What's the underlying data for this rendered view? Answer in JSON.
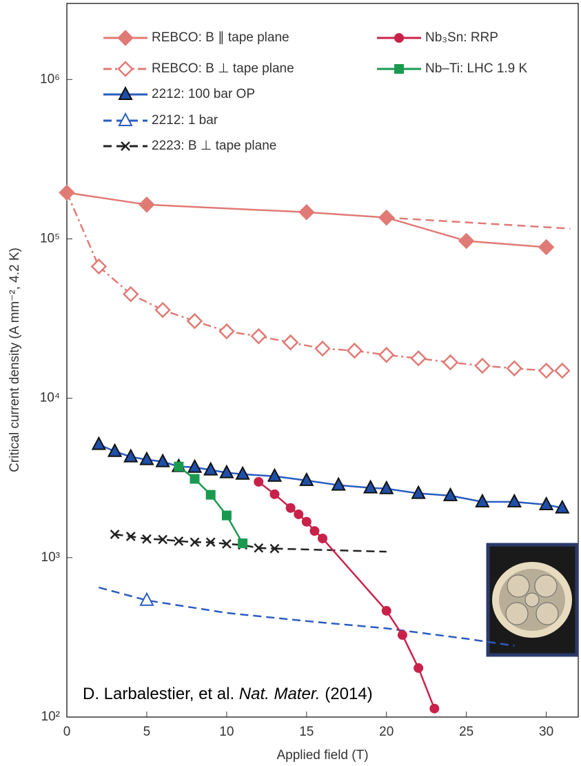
{
  "chart_data": {
    "type": "line",
    "y_label": "Critical current density (A mm⁻², 4.2 K)",
    "x_label": "Applied field (T)",
    "citation": [
      "D. Larbalestier, et al. ",
      "Nat. Mater.",
      " (2014)"
    ],
    "log_y": true,
    "xlim": [
      0,
      32
    ],
    "xticks": [
      0,
      5,
      10,
      15,
      20,
      25,
      30
    ],
    "ylim": [
      100,
      3000000
    ],
    "yticks": [
      {
        "value": 100,
        "label": "10²"
      },
      {
        "value": 1000,
        "label": "10³"
      },
      {
        "value": 10000,
        "label": "10⁴"
      },
      {
        "value": 100000,
        "label": "10⁵"
      },
      {
        "value": 1000000,
        "label": "10⁶"
      }
    ],
    "series": [
      {
        "color": "#e07a75",
        "dash": "dash",
        "marker": "none",
        "x": [
          20,
          31.5
        ],
        "values": [
          136000,
          116000
        ]
      },
      {
        "color": "#e07a75",
        "dash": "dashdot",
        "marker": "none",
        "x": [
          0,
          2
        ],
        "values": [
          195000,
          67100
        ]
      },
      {
        "name": "REBCO: B ∥ tape plane",
        "color": "#e07a75",
        "dash": "solid",
        "marker": "diamond",
        "x": [
          0,
          5,
          15,
          20,
          25,
          30
        ],
        "values": [
          195000,
          164000,
          147000,
          136000,
          97000,
          88700
        ]
      },
      {
        "name": "REBCO: B ⊥ tape plane",
        "color": "#e07a75",
        "dash": "dashdot",
        "marker": "diamond-open",
        "x": [
          2,
          4,
          6,
          8,
          10,
          12,
          14,
          16,
          18,
          20,
          22,
          24,
          26,
          28,
          30,
          31
        ],
        "values": [
          67100,
          45000,
          35800,
          30500,
          26300,
          24500,
          22400,
          20500,
          19900,
          18700,
          17800,
          16800,
          16000,
          15400,
          14900,
          14900
        ]
      },
      {
        "name": "2212: 100 bar OP",
        "color": "#2a5cc0",
        "dash": "solid",
        "marker": "triangle",
        "x": [
          2,
          3,
          4,
          5,
          6,
          7,
          8,
          9,
          10,
          11,
          13,
          15,
          17,
          19,
          20,
          22,
          24,
          26,
          28,
          30,
          31
        ],
        "values": [
          5130,
          4640,
          4290,
          4120,
          4000,
          3730,
          3690,
          3550,
          3410,
          3340,
          3240,
          3050,
          2850,
          2740,
          2710,
          2530,
          2450,
          2240,
          2240,
          2150,
          2050
        ]
      },
      {
        "color": "#2a5cc0",
        "dash": "dash",
        "marker": "none",
        "x": [
          2,
          5,
          10,
          15,
          20,
          25,
          28
        ],
        "values": [
          650,
          540,
          450,
          400,
          360,
          310,
          280
        ]
      },
      {
        "name": "2212: 1 bar",
        "color": "#2a5cc0",
        "dash": "dash",
        "marker": "triangle-open",
        "x": [
          5
        ],
        "values": [
          540
        ]
      },
      {
        "color": "#222222",
        "dash": "dash",
        "marker": "none",
        "x": [
          13,
          20
        ],
        "values": [
          1140,
          1090
        ]
      },
      {
        "name": "2223: B ⊥ tape plane",
        "color": "#222222",
        "dash": "dash",
        "marker": "x",
        "x": [
          3,
          4,
          5,
          6,
          7,
          8,
          9,
          10,
          11,
          12,
          13
        ],
        "values": [
          1400,
          1360,
          1310,
          1300,
          1270,
          1250,
          1250,
          1220,
          1200,
          1150,
          1140
        ]
      },
      {
        "name": "Nb₃Sn: RRP",
        "color": "#c8224a",
        "dash": "solid",
        "marker": "circle",
        "x": [
          12,
          13,
          14,
          14.5,
          15,
          15.5,
          16,
          20,
          21,
          22,
          23
        ],
        "values": [
          2990,
          2500,
          2050,
          1870,
          1680,
          1470,
          1320,
          464,
          327,
          203,
          113
        ]
      },
      {
        "name": "Nb–Ti: LHC 1.9 K",
        "color": "#1a9a50",
        "dash": "solid",
        "marker": "square",
        "x": [
          7,
          8,
          9,
          10,
          11
        ],
        "values": [
          3730,
          3120,
          2480,
          1840,
          1230
        ]
      }
    ]
  }
}
